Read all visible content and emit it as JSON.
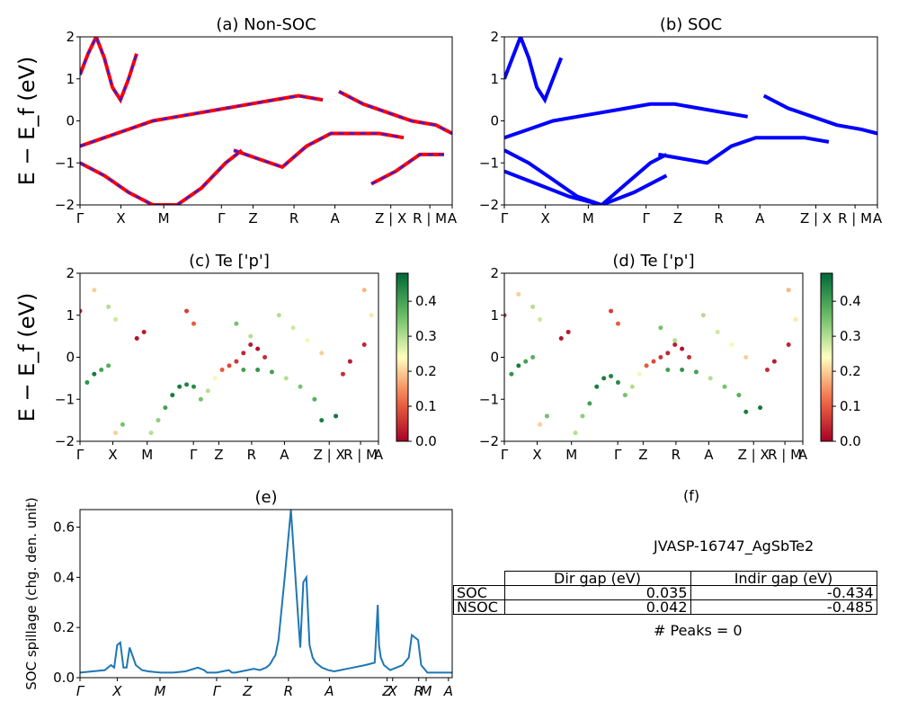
{
  "chart_data": [
    {
      "id": "a",
      "type": "line",
      "title": "(a) Non-SOC",
      "ylabel": "E − E_f (eV)",
      "ylim": [
        -2,
        2
      ],
      "yticks": [
        "2",
        "1",
        "0",
        "−1",
        "−2"
      ],
      "xticks": [
        "Γ",
        "X",
        "M",
        "Γ",
        "Z",
        "R",
        "A",
        "Z | X",
        "R | M",
        "A"
      ],
      "colors": {
        "non_soc": "#ff0000",
        "soc_overlay": "#1f1fff"
      },
      "bands": [
        {
          "x": [
            0,
            0.1,
            0.2,
            0.3,
            0.4,
            0.5,
            0.6,
            0.7
          ],
          "y": [
            1.1,
            1.6,
            2.0,
            1.5,
            0.8,
            0.5,
            1.0,
            1.6
          ]
        },
        {
          "x": [
            0,
            0.3,
            0.6,
            0.9,
            1.2,
            1.5,
            1.8,
            2.1,
            2.4,
            2.7,
            3.0
          ],
          "y": [
            -0.6,
            -0.4,
            -0.2,
            0.0,
            0.1,
            0.2,
            0.3,
            0.4,
            0.5,
            0.6,
            0.5
          ]
        },
        {
          "x": [
            0,
            0.3,
            0.6,
            0.9,
            1.2,
            1.5,
            1.8,
            2.0
          ],
          "y": [
            -1.0,
            -1.3,
            -1.7,
            -2.0,
            -2.0,
            -1.6,
            -1.0,
            -0.7
          ]
        },
        {
          "x": [
            1.9,
            2.2,
            2.5,
            2.8,
            3.1,
            3.4,
            3.7,
            4.0
          ],
          "y": [
            -0.7,
            -0.9,
            -1.1,
            -0.6,
            -0.3,
            -0.3,
            -0.3,
            -0.4
          ]
        },
        {
          "x": [
            3.2,
            3.5,
            3.8,
            4.1,
            4.4,
            4.6
          ],
          "y": [
            0.7,
            0.4,
            0.2,
            0.0,
            -0.1,
            -0.3
          ]
        },
        {
          "x": [
            3.6,
            3.9,
            4.2,
            4.5
          ],
          "y": [
            -1.5,
            -1.2,
            -0.8,
            -0.8
          ]
        }
      ]
    },
    {
      "id": "b",
      "type": "line",
      "title": "(b) SOC",
      "ylim": [
        -2,
        2
      ],
      "yticks": [
        "2",
        "1",
        "0",
        "−1",
        "−2"
      ],
      "xticks": [
        "Γ",
        "X",
        "M",
        "Γ",
        "Z",
        "R",
        "A",
        "Z | X",
        "R | M",
        "A"
      ],
      "colors": {
        "soc": "#0000ff"
      },
      "bands": [
        {
          "x": [
            0,
            0.1,
            0.2,
            0.3,
            0.4,
            0.5,
            0.6,
            0.7
          ],
          "y": [
            1.0,
            1.5,
            2.0,
            1.5,
            0.8,
            0.5,
            1.0,
            1.5
          ]
        },
        {
          "x": [
            0,
            0.3,
            0.6,
            0.9,
            1.2,
            1.5,
            1.8,
            2.1,
            2.4,
            2.7,
            3.0
          ],
          "y": [
            -0.4,
            -0.2,
            0.0,
            0.1,
            0.2,
            0.3,
            0.4,
            0.4,
            0.3,
            0.2,
            0.1
          ]
        },
        {
          "x": [
            0,
            0.3,
            0.6,
            0.9,
            1.2,
            1.5,
            1.8,
            2.0
          ],
          "y": [
            -0.7,
            -1.0,
            -1.4,
            -1.8,
            -2.0,
            -1.5,
            -1.0,
            -0.8
          ]
        },
        {
          "x": [
            1.9,
            2.2,
            2.5,
            2.8,
            3.1,
            3.4,
            3.7,
            4.0
          ],
          "y": [
            -0.8,
            -0.9,
            -1.0,
            -0.6,
            -0.4,
            -0.4,
            -0.4,
            -0.5
          ]
        },
        {
          "x": [
            3.2,
            3.5,
            3.8,
            4.1,
            4.4,
            4.6
          ],
          "y": [
            0.6,
            0.3,
            0.1,
            -0.1,
            -0.2,
            -0.3
          ]
        },
        {
          "x": [
            0,
            0.4,
            0.8,
            1.2,
            1.6,
            2.0
          ],
          "y": [
            -1.2,
            -1.5,
            -1.8,
            -2.0,
            -1.7,
            -1.3
          ]
        }
      ]
    },
    {
      "id": "c",
      "type": "scatter",
      "title": "(c)  Te ['p']",
      "ylabel": "E − E_f (eV)",
      "ylim": [
        -2,
        2
      ],
      "yticks": [
        "2",
        "1",
        "0",
        "−1",
        "−2"
      ],
      "xticks": [
        "Γ",
        "X",
        "M",
        "Γ",
        "Z",
        "R",
        "A",
        "Z | X",
        "R | M",
        "A"
      ],
      "colorbar": {
        "ticks": [
          "0.4",
          "0.3",
          "0.2",
          "0.1",
          "0.0"
        ],
        "range": [
          0,
          0.48
        ]
      },
      "points": [
        [
          0,
          1.1,
          0.05
        ],
        [
          0.2,
          1.6,
          0.2
        ],
        [
          0.4,
          1.2,
          0.3
        ],
        [
          0.5,
          0.9,
          0.28
        ],
        [
          0.8,
          0.45,
          0.02
        ],
        [
          0.9,
          0.6,
          0.03
        ],
        [
          1.5,
          1.1,
          0.07
        ],
        [
          1.6,
          0.8,
          0.1
        ],
        [
          0.1,
          -0.6,
          0.42
        ],
        [
          0.2,
          -0.4,
          0.45
        ],
        [
          0.3,
          -0.3,
          0.4
        ],
        [
          0.4,
          -0.2,
          0.38
        ],
        [
          0.5,
          -1.8,
          0.2
        ],
        [
          0.6,
          -1.6,
          0.35
        ],
        [
          1.0,
          -1.8,
          0.3
        ],
        [
          1.1,
          -1.5,
          0.33
        ],
        [
          1.2,
          -1.2,
          0.4
        ],
        [
          1.3,
          -0.9,
          0.45
        ],
        [
          1.4,
          -0.7,
          0.45
        ],
        [
          1.5,
          -0.65,
          0.44
        ],
        [
          1.6,
          -0.7,
          0.43
        ],
        [
          1.7,
          -1.0,
          0.35
        ],
        [
          1.8,
          -0.8,
          0.3
        ],
        [
          1.9,
          -0.5,
          0.25
        ],
        [
          2.0,
          -0.3,
          0.1
        ],
        [
          2.1,
          -0.2,
          0.08
        ],
        [
          2.2,
          -0.1,
          0.06
        ],
        [
          2.3,
          0.1,
          0.04
        ],
        [
          2.4,
          0.3,
          0.03
        ],
        [
          2.5,
          0.2,
          0.02
        ],
        [
          2.6,
          0.0,
          0.05
        ],
        [
          2.3,
          -0.3,
          0.4
        ],
        [
          2.5,
          -0.3,
          0.42
        ],
        [
          2.7,
          -0.35,
          0.4
        ],
        [
          2.9,
          -0.5,
          0.3
        ],
        [
          3.1,
          -0.7,
          0.35
        ],
        [
          3.3,
          -1.0,
          0.38
        ],
        [
          3.4,
          -1.5,
          0.45
        ],
        [
          3.6,
          -1.4,
          0.46
        ],
        [
          2.2,
          0.8,
          0.35
        ],
        [
          2.4,
          0.5,
          0.3
        ],
        [
          2.8,
          1.0,
          0.3
        ],
        [
          3.0,
          0.7,
          0.28
        ],
        [
          3.2,
          0.4,
          0.25
        ],
        [
          3.4,
          0.1,
          0.2
        ],
        [
          3.7,
          -0.4,
          0.05
        ],
        [
          3.8,
          -0.1,
          0.03
        ],
        [
          4.0,
          0.3,
          0.04
        ],
        [
          4.0,
          1.6,
          0.18
        ],
        [
          4.1,
          1.0,
          0.22
        ]
      ]
    },
    {
      "id": "d",
      "type": "scatter",
      "title": "(d) Te ['p']",
      "ylim": [
        -2,
        2
      ],
      "yticks": [
        "2",
        "1",
        "0",
        "−1",
        "−2"
      ],
      "xticks": [
        "Γ",
        "X",
        "M",
        "Γ",
        "Z",
        "R",
        "A",
        "Z | X",
        "R | M",
        "A"
      ],
      "colorbar": {
        "ticks": [
          "0.4",
          "0.3",
          "0.2",
          "0.1",
          "0.0"
        ],
        "range": [
          0,
          0.48
        ]
      },
      "points": [
        [
          0,
          1.0,
          0.05
        ],
        [
          0.2,
          1.5,
          0.2
        ],
        [
          0.4,
          1.2,
          0.3
        ],
        [
          0.5,
          0.9,
          0.28
        ],
        [
          0.8,
          0.45,
          0.02
        ],
        [
          0.9,
          0.6,
          0.03
        ],
        [
          1.5,
          1.1,
          0.07
        ],
        [
          1.6,
          0.8,
          0.1
        ],
        [
          0.1,
          -0.4,
          0.42
        ],
        [
          0.2,
          -0.2,
          0.45
        ],
        [
          0.3,
          -0.1,
          0.4
        ],
        [
          0.4,
          0.0,
          0.38
        ],
        [
          0.5,
          -1.6,
          0.2
        ],
        [
          0.6,
          -1.4,
          0.35
        ],
        [
          1.0,
          -1.8,
          0.3
        ],
        [
          1.1,
          -1.4,
          0.33
        ],
        [
          1.2,
          -1.1,
          0.4
        ],
        [
          1.3,
          -0.7,
          0.45
        ],
        [
          1.4,
          -0.5,
          0.45
        ],
        [
          1.5,
          -0.45,
          0.44
        ],
        [
          1.6,
          -0.6,
          0.43
        ],
        [
          1.7,
          -0.9,
          0.35
        ],
        [
          1.8,
          -0.7,
          0.3
        ],
        [
          1.9,
          -0.4,
          0.25
        ],
        [
          2.0,
          -0.2,
          0.1
        ],
        [
          2.1,
          -0.1,
          0.08
        ],
        [
          2.2,
          0.0,
          0.06
        ],
        [
          2.3,
          0.1,
          0.04
        ],
        [
          2.4,
          0.3,
          0.03
        ],
        [
          2.5,
          0.2,
          0.02
        ],
        [
          2.6,
          0.0,
          0.05
        ],
        [
          2.3,
          -0.3,
          0.4
        ],
        [
          2.5,
          -0.3,
          0.42
        ],
        [
          2.7,
          -0.35,
          0.4
        ],
        [
          2.9,
          -0.5,
          0.3
        ],
        [
          3.1,
          -0.7,
          0.35
        ],
        [
          3.3,
          -0.9,
          0.38
        ],
        [
          3.4,
          -1.3,
          0.45
        ],
        [
          3.6,
          -1.2,
          0.46
        ],
        [
          2.2,
          0.7,
          0.35
        ],
        [
          2.4,
          0.4,
          0.3
        ],
        [
          2.8,
          1.0,
          0.3
        ],
        [
          3.0,
          0.6,
          0.28
        ],
        [
          3.2,
          0.3,
          0.25
        ],
        [
          3.4,
          0.0,
          0.2
        ],
        [
          3.7,
          -0.3,
          0.05
        ],
        [
          3.8,
          -0.1,
          0.03
        ],
        [
          4.0,
          0.3,
          0.04
        ],
        [
          4.0,
          1.6,
          0.18
        ],
        [
          4.1,
          0.9,
          0.22
        ]
      ]
    },
    {
      "id": "e",
      "type": "line",
      "title": "(e)",
      "ylabel": "SOC spillage (chg. den. unit)",
      "ylim": [
        0,
        0.67
      ],
      "yticks": [
        "0.0",
        "0.2",
        "0.4",
        "0.6"
      ],
      "xticks": [
        "Γ",
        "X",
        "M",
        "Γ",
        "Z",
        "R",
        "A",
        "Z",
        "X",
        "R",
        "M",
        "A"
      ],
      "color": "#1f77b4",
      "x": [
        0,
        0.2,
        0.4,
        0.5,
        0.55,
        0.6,
        0.65,
        0.7,
        0.72,
        0.75,
        0.8,
        0.9,
        1.0,
        1.1,
        1.3,
        1.5,
        1.7,
        1.9,
        2.0,
        2.05,
        2.1,
        2.2,
        2.3,
        2.4,
        2.45,
        2.5,
        2.6,
        2.7,
        2.8,
        2.9,
        3.0,
        3.05,
        3.08,
        3.1,
        3.15,
        3.2,
        3.3,
        3.4,
        3.5,
        3.55,
        3.6,
        3.65,
        3.7,
        3.75,
        3.8,
        3.9,
        4.0,
        4.1,
        4.2,
        4.3,
        4.4,
        4.6,
        4.75,
        4.8,
        4.82,
        4.85,
        4.9,
        5.0,
        5.1,
        5.2,
        5.3,
        5.35,
        5.4,
        5.45,
        5.5,
        5.6,
        5.7,
        5.8,
        5.9,
        6.0
      ],
      "y": [
        0.02,
        0.025,
        0.03,
        0.05,
        0.04,
        0.13,
        0.14,
        0.04,
        0.04,
        0.04,
        0.12,
        0.05,
        0.03,
        0.025,
        0.02,
        0.02,
        0.025,
        0.04,
        0.03,
        0.02,
        0.02,
        0.02,
        0.025,
        0.03,
        0.02,
        0.02,
        0.025,
        0.03,
        0.035,
        0.03,
        0.04,
        0.05,
        0.06,
        0.07,
        0.09,
        0.15,
        0.4,
        0.67,
        0.3,
        0.12,
        0.38,
        0.4,
        0.13,
        0.08,
        0.06,
        0.04,
        0.03,
        0.025,
        0.03,
        0.035,
        0.04,
        0.05,
        0.06,
        0.29,
        0.13,
        0.08,
        0.05,
        0.03,
        0.04,
        0.05,
        0.08,
        0.17,
        0.16,
        0.15,
        0.05,
        0.02,
        0.02,
        0.02,
        0.02,
        0.02
      ]
    }
  ],
  "panel_f": {
    "title": "(f)",
    "label": "JVASP-16747_AgSbTe2",
    "table": {
      "headers": [
        "Dir gap (eV)",
        "Indir gap (eV)"
      ],
      "rows": [
        {
          "label": "SOC",
          "dir": "0.035",
          "indir": "-0.434"
        },
        {
          "label": "NSOC",
          "dir": "0.042",
          "indir": "-0.485"
        }
      ]
    },
    "peaks": "# Peaks = 0"
  }
}
